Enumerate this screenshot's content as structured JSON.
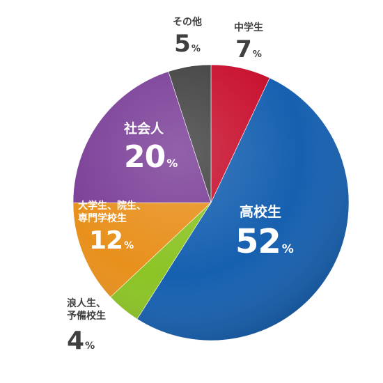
{
  "chart_data": {
    "type": "pie",
    "start_angle_deg": 0,
    "direction": "clockwise",
    "slices": [
      {
        "label": "中学生",
        "value": 7,
        "unit": "%",
        "color": "#c8102e"
      },
      {
        "label": "高校生",
        "value": 52,
        "unit": "%",
        "color": "#1660b0"
      },
      {
        "label": "浪人生、予備校生",
        "value": 4,
        "unit": "%",
        "color": "#8cc425"
      },
      {
        "label": "大学生、院生、専門学校生",
        "value": 12,
        "unit": "%",
        "color": "#e8901c"
      },
      {
        "label": "社会人",
        "value": 20,
        "unit": "%",
        "color": "#7b3f98"
      },
      {
        "label": "その他",
        "value": 5,
        "unit": "%",
        "color": "#424242"
      }
    ]
  },
  "labels": {
    "chugakusei": {
      "name": "中学生",
      "value": "7",
      "unit": "%"
    },
    "kokosei": {
      "name": "高校生",
      "value": "52",
      "unit": "%"
    },
    "ronin_line1": "浪人生、",
    "ronin_line2": "予備校生",
    "ronin_value": "4",
    "ronin_unit": "%",
    "daigaku_line1": "大学生、院生、",
    "daigaku_line2": "専門学校生",
    "daigaku_value": "12",
    "daigaku_unit": "%",
    "shakaijin": {
      "name": "社会人",
      "value": "20",
      "unit": "%"
    },
    "sonota": {
      "name": "その他",
      "value": "5",
      "unit": "%"
    }
  }
}
